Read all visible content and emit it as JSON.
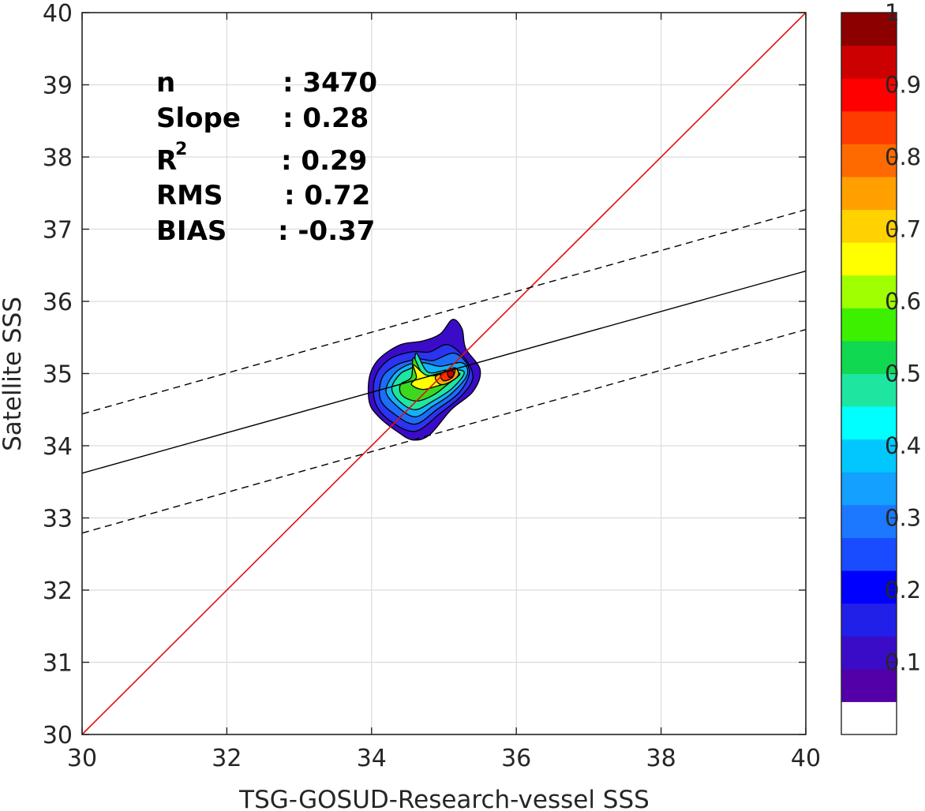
{
  "chart_data": {
    "type": "contour",
    "title": "",
    "xlabel": "TSG-GOSUD-Research-vessel SSS",
    "ylabel": "Satellite SSS",
    "xlim": [
      30,
      40
    ],
    "ylim": [
      30,
      40
    ],
    "xticks": [
      "30",
      "32",
      "34",
      "36",
      "38",
      "40"
    ],
    "yticks": [
      "30",
      "31",
      "32",
      "33",
      "34",
      "35",
      "36",
      "37",
      "38",
      "39",
      "40"
    ],
    "grid": true,
    "stats": {
      "n_label": "n",
      "n_value": ": 3470",
      "slope_label": "Slope",
      "slope_value": ": 0.28",
      "r2_label": "R",
      "r2_sup": "2",
      "r2_value": ": 0.29",
      "rms_label": "RMS",
      "rms_value": ": 0.72",
      "bias_label": "BIAS",
      "bias_value": ": -0.37"
    },
    "identity_line": {
      "from": [
        30,
        30
      ],
      "to": [
        40,
        40
      ],
      "color": "#e01010"
    },
    "regression_line": {
      "from": [
        30,
        33.62
      ],
      "to": [
        40,
        36.42
      ],
      "color": "#000000"
    },
    "confidence_lines": [
      {
        "from": [
          30,
          34.44
        ],
        "to": [
          40,
          37.27
        ]
      },
      {
        "from": [
          30,
          32.79
        ],
        "to": [
          40,
          35.61
        ]
      }
    ],
    "density_contours": [
      {
        "level": 0.05,
        "color": "#3a0cc8",
        "points": [
          [
            34.57,
            34.08
          ],
          [
            34.35,
            34.2
          ],
          [
            34.1,
            34.4
          ],
          [
            33.97,
            34.6
          ],
          [
            33.97,
            34.95
          ],
          [
            34.1,
            35.2
          ],
          [
            34.4,
            35.4
          ],
          [
            34.7,
            35.45
          ],
          [
            34.95,
            35.55
          ],
          [
            35.12,
            35.75
          ],
          [
            35.25,
            35.62
          ],
          [
            35.3,
            35.35
          ],
          [
            35.5,
            35.05
          ],
          [
            35.4,
            34.75
          ],
          [
            35.1,
            34.5
          ],
          [
            34.8,
            34.15
          ]
        ]
      },
      {
        "level": 0.15,
        "color": "#2b34f0",
        "points": [
          [
            34.6,
            34.2
          ],
          [
            34.25,
            34.35
          ],
          [
            34.05,
            34.6
          ],
          [
            34.05,
            34.95
          ],
          [
            34.25,
            35.2
          ],
          [
            34.55,
            35.3
          ],
          [
            34.8,
            35.3
          ],
          [
            35.05,
            35.4
          ],
          [
            35.28,
            35.22
          ],
          [
            35.4,
            34.95
          ],
          [
            35.25,
            34.7
          ],
          [
            34.95,
            34.45
          ]
        ]
      },
      {
        "level": 0.25,
        "color": "#1c6ef8",
        "points": [
          [
            34.6,
            34.3
          ],
          [
            34.3,
            34.45
          ],
          [
            34.12,
            34.65
          ],
          [
            34.15,
            34.95
          ],
          [
            34.35,
            35.12
          ],
          [
            34.65,
            35.2
          ],
          [
            34.85,
            35.18
          ],
          [
            35.15,
            35.28
          ],
          [
            35.35,
            35.05
          ],
          [
            35.22,
            34.75
          ],
          [
            34.9,
            34.5
          ]
        ]
      },
      {
        "level": 0.35,
        "color": "#13b2f5",
        "points": [
          [
            34.6,
            34.4
          ],
          [
            34.35,
            34.55
          ],
          [
            34.2,
            34.75
          ],
          [
            34.3,
            34.98
          ],
          [
            34.5,
            35.12
          ],
          [
            34.72,
            35.15
          ],
          [
            34.95,
            35.1
          ],
          [
            35.25,
            35.15
          ],
          [
            35.32,
            34.98
          ],
          [
            35.1,
            34.72
          ],
          [
            34.85,
            34.55
          ]
        ]
      },
      {
        "level": 0.45,
        "color": "#1ee6a0",
        "points": [
          [
            34.6,
            34.5
          ],
          [
            34.38,
            34.62
          ],
          [
            34.28,
            34.8
          ],
          [
            34.4,
            35.0
          ],
          [
            34.58,
            35.1
          ],
          [
            34.62,
            35.28
          ],
          [
            34.78,
            35.02
          ],
          [
            35.05,
            35.05
          ],
          [
            35.28,
            35.02
          ],
          [
            35.12,
            34.8
          ],
          [
            34.85,
            34.62
          ]
        ]
      },
      {
        "level": 0.55,
        "color": "#3cd820",
        "points": [
          [
            34.62,
            34.62
          ],
          [
            34.42,
            34.7
          ],
          [
            34.4,
            34.85
          ],
          [
            34.55,
            34.95
          ],
          [
            34.58,
            35.22
          ],
          [
            34.72,
            34.98
          ],
          [
            34.95,
            35.0
          ],
          [
            35.22,
            35.0
          ],
          [
            35.05,
            34.85
          ],
          [
            34.85,
            34.7
          ]
        ]
      },
      {
        "level": 0.65,
        "color": "#ffff00",
        "points": [
          [
            34.7,
            34.78
          ],
          [
            34.55,
            34.85
          ],
          [
            34.62,
            34.95
          ],
          [
            34.58,
            35.12
          ],
          [
            34.75,
            34.98
          ],
          [
            34.95,
            34.98
          ],
          [
            35.18,
            35.02
          ],
          [
            35.05,
            34.88
          ],
          [
            34.88,
            34.82
          ]
        ]
      },
      {
        "level": 0.75,
        "color": "#ffa800",
        "points": [
          [
            34.95,
            34.85
          ],
          [
            34.88,
            34.95
          ],
          [
            35.0,
            35.02
          ],
          [
            35.15,
            35.08
          ],
          [
            35.2,
            34.98
          ],
          [
            35.08,
            34.88
          ]
        ]
      },
      {
        "level": 0.85,
        "color": "#ff2e00",
        "points": [
          [
            35.0,
            34.9
          ],
          [
            34.95,
            34.98
          ],
          [
            35.05,
            35.05
          ],
          [
            35.15,
            35.07
          ],
          [
            35.12,
            34.95
          ]
        ]
      },
      {
        "level": 0.95,
        "color": "#cc0000",
        "points": [
          [
            35.07,
            34.95
          ],
          [
            35.05,
            35.02
          ],
          [
            35.12,
            35.04
          ],
          [
            35.13,
            34.97
          ]
        ]
      }
    ],
    "colorbar": {
      "ticks": [
        "0.1",
        "0.2",
        "0.3",
        "0.4",
        "0.5",
        "0.6",
        "0.7",
        "0.8",
        "0.9",
        "1"
      ],
      "tick_values": [
        0.1,
        0.2,
        0.3,
        0.4,
        0.5,
        0.6,
        0.7,
        0.8,
        0.9,
        1.0
      ],
      "range": [
        0,
        1
      ],
      "colors": [
        "#ffffff",
        "#5300a8",
        "#3a0cc8",
        "#2020e8",
        "#0000ff",
        "#1a4cff",
        "#1c78ff",
        "#13a0ff",
        "#00c8ff",
        "#00ffff",
        "#1ee6a0",
        "#10d850",
        "#3cf000",
        "#a0ff00",
        "#ffff00",
        "#ffd200",
        "#ffa000",
        "#ff6a00",
        "#ff3c00",
        "#ff0000",
        "#cc0000",
        "#8c0000"
      ]
    }
  }
}
